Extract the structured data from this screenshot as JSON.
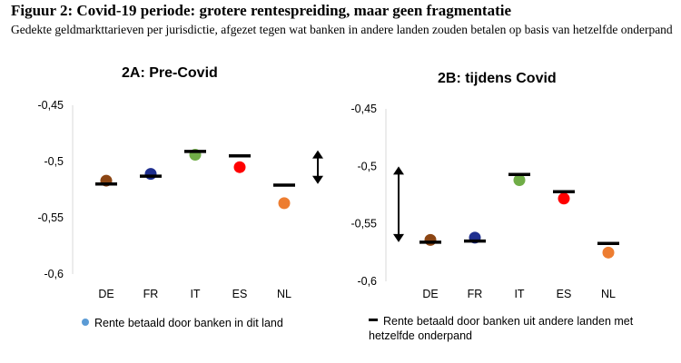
{
  "figure": {
    "title": "Figuur 2: Covid-19 periode: grotere rentespreiding, maar geen fragmentatie",
    "subtitle": "Gedekte geldmarkttarieven per jurisdictie, afgezet tegen wat banken in andere landen zouden betalen op basis van hetzelfde onderpand"
  },
  "legend": {
    "dot_label": "Rente betaald door banken in dit land",
    "dash_label": "Rente betaald door banken uit andere landen met hetzelfde onderpand",
    "dot_color": "#5b9bd5"
  },
  "chart_data": [
    {
      "type": "scatter",
      "title": "2A: Pre-Covid",
      "categories": [
        "DE",
        "FR",
        "IT",
        "ES",
        "NL"
      ],
      "colors": [
        "#8b4513",
        "#1f2f8f",
        "#70ad47",
        "#ff0000",
        "#ed7d31"
      ],
      "series": [
        {
          "name": "Rente betaald door banken in dit land",
          "marker": "dot",
          "values": [
            -0.517,
            -0.511,
            -0.494,
            -0.505,
            -0.537
          ]
        },
        {
          "name": "Rente betaald door banken uit andere landen met hetzelfde onderpand",
          "marker": "dash",
          "values": [
            -0.52,
            -0.513,
            -0.491,
            -0.495,
            -0.521
          ]
        }
      ],
      "ylim": [
        -0.6,
        -0.45
      ],
      "yticks": [
        -0.45,
        -0.5,
        -0.55,
        -0.6
      ],
      "ytick_labels": [
        "-0,45",
        "-0,5",
        "-0,55",
        "-0,6"
      ],
      "range_arrow": [
        -0.49,
        -0.52
      ],
      "grid": false
    },
    {
      "type": "scatter",
      "title": "2B: tijdens Covid",
      "categories": [
        "DE",
        "FR",
        "IT",
        "ES",
        "NL"
      ],
      "colors": [
        "#8b4513",
        "#1f2f8f",
        "#70ad47",
        "#ff0000",
        "#ed7d31"
      ],
      "series": [
        {
          "name": "Rente betaald door banken in dit land",
          "marker": "dot",
          "values": [
            -0.564,
            -0.562,
            -0.512,
            -0.528,
            -0.575
          ]
        },
        {
          "name": "Rente betaald door banken uit andere landen met hetzelfde onderpand",
          "marker": "dash",
          "values": [
            -0.566,
            -0.565,
            -0.507,
            -0.522,
            -0.567
          ]
        }
      ],
      "ylim": [
        -0.6,
        -0.45
      ],
      "yticks": [
        -0.45,
        -0.5,
        -0.55,
        -0.6
      ],
      "ytick_labels": [
        "-0,45",
        "-0,5",
        "-0,55",
        "-0,6"
      ],
      "range_arrow": [
        -0.5,
        -0.566
      ],
      "grid": false
    }
  ]
}
